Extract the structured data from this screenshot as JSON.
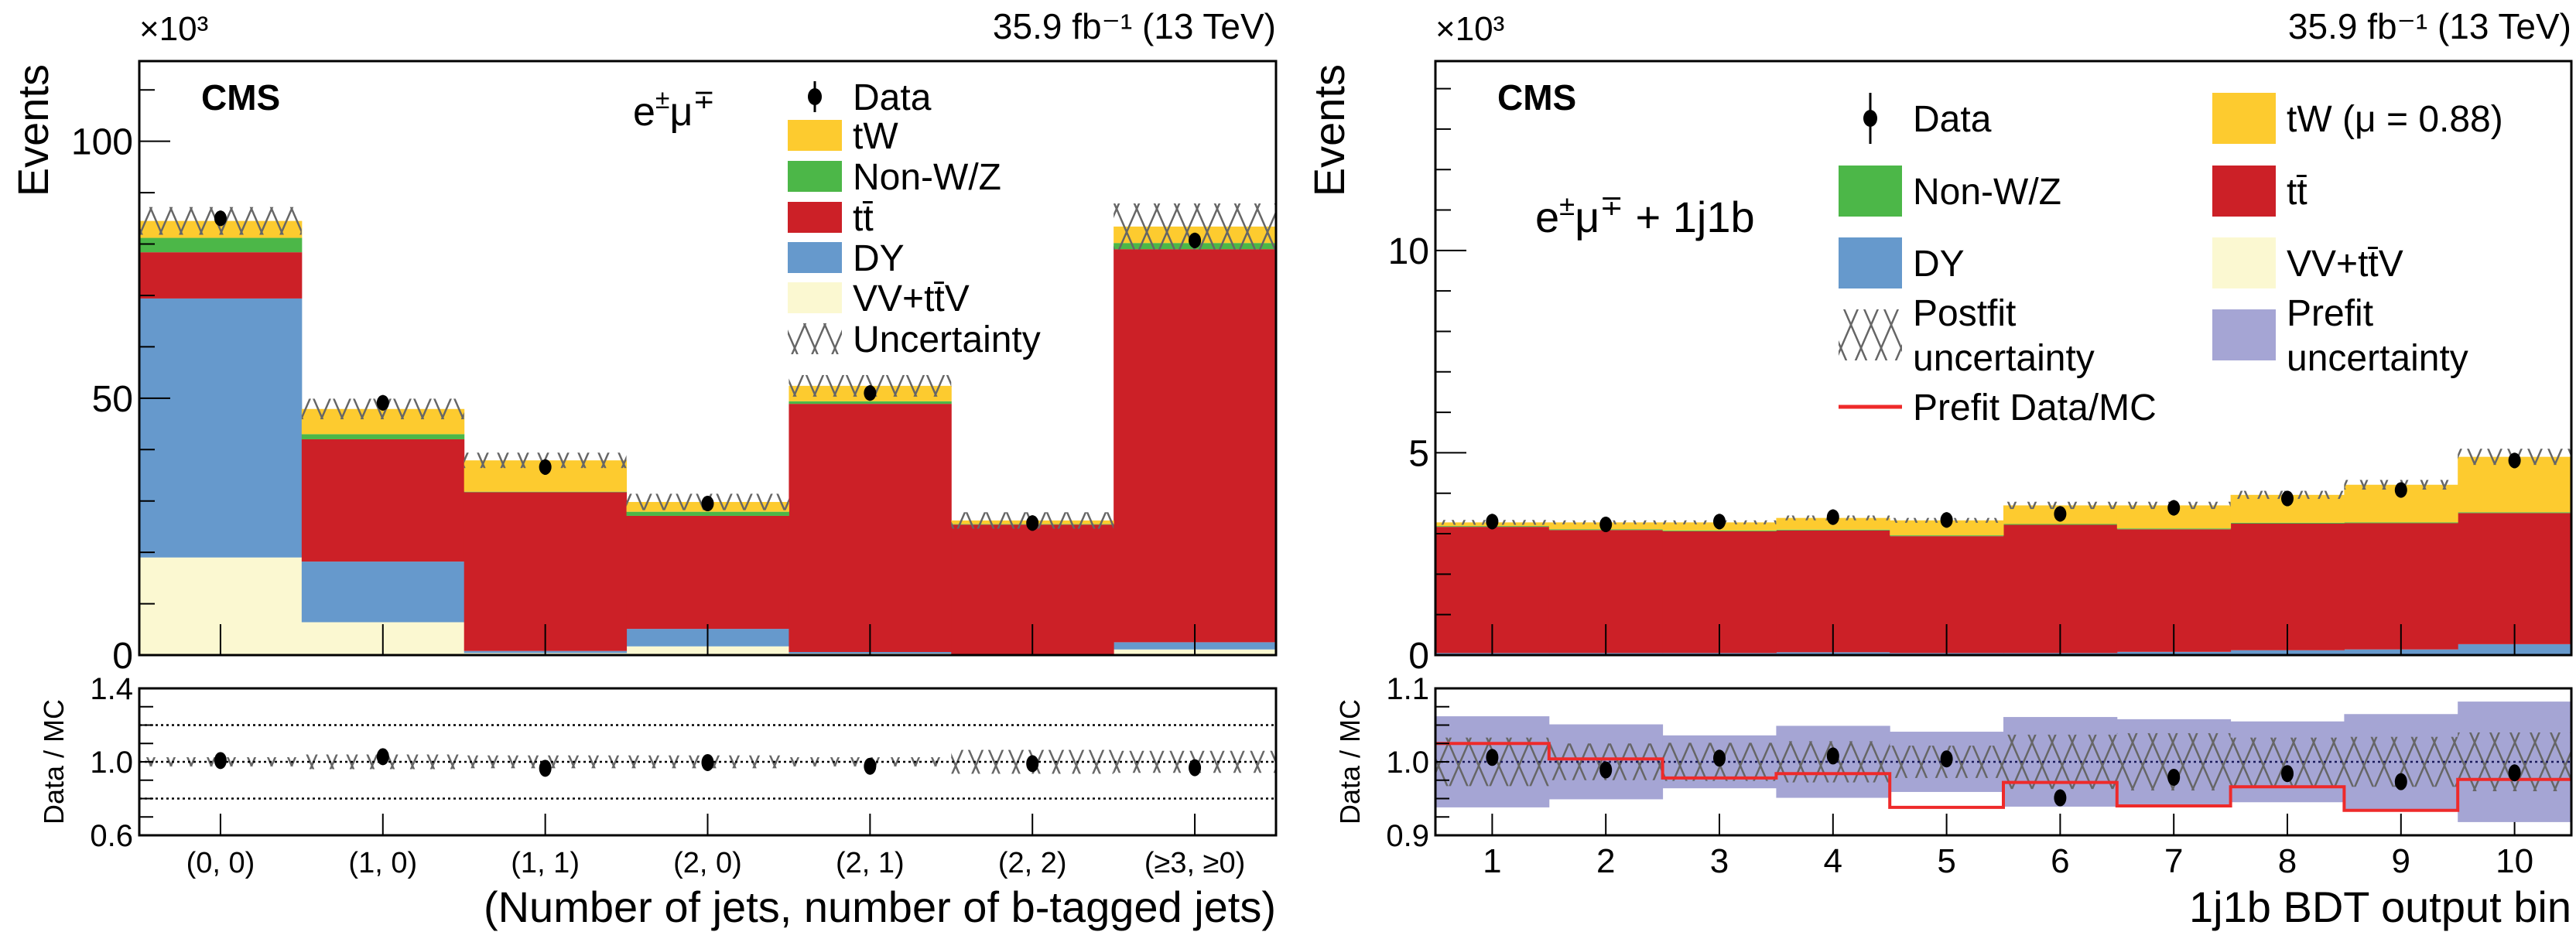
{
  "colors": {
    "tW": "#fdcb2f",
    "nonwz": "#4cb748",
    "ttbar": "#cc2027",
    "dy": "#6699cc",
    "vv": "#fbf8d1",
    "prefit_unc": "#a5a5d4",
    "prefit_line": "#ee2a2a",
    "hatch": "#666666"
  },
  "chart_data": [
    {
      "type": "bar",
      "stacked": true,
      "experiment": "CMS",
      "luminosity": "35.9 fb⁻¹ (13 TeV)",
      "multiplier": "×10³",
      "channel": {
        "l1": "e",
        "s1": "±",
        "l2": "μ",
        "s2": "∓",
        "suffix": ""
      },
      "ylabel": "Events",
      "xlabel": "(Number of jets, number of b-tagged jets)",
      "ylim": [
        0,
        115.6
      ],
      "yticks": [
        0,
        50,
        100
      ],
      "yticks_minor_step": 10,
      "categories": [
        "(0, 0)",
        "(1, 0)",
        "(1, 1)",
        "(2, 0)",
        "(2, 1)",
        "(2, 2)",
        "(≥3, ≥0)"
      ],
      "series": [
        {
          "name": "VV+tt̄V",
          "color": "#fbf8d1",
          "values": [
            19.0,
            6.4,
            0.4,
            1.7,
            0.3,
            0.1,
            1.1
          ]
        },
        {
          "name": "DY",
          "color": "#6699cc",
          "values": [
            50.4,
            11.8,
            0.4,
            3.4,
            0.3,
            0.1,
            1.4
          ]
        },
        {
          "name": "tt̄",
          "color": "#cc2027",
          "values": [
            9.0,
            23.8,
            30.9,
            22.0,
            48.3,
            25.2,
            76.5
          ]
        },
        {
          "name": "Non-W/Z",
          "color": "#4cb748",
          "values": [
            2.8,
            1.0,
            0.1,
            0.8,
            0.5,
            0.1,
            1.2
          ]
        },
        {
          "name": "tW",
          "color": "#fdcb2f",
          "values": [
            3.3,
            4.9,
            6.1,
            1.9,
            3.0,
            0.7,
            3.2
          ]
        }
      ],
      "data": {
        "name": "Data",
        "values": [
          85.0,
          49.1,
          36.6,
          29.5,
          51.0,
          25.7,
          80.7
        ]
      },
      "uncertainty": [
        2.7,
        2.0,
        1.5,
        1.6,
        2.1,
        1.6,
        4.5
      ],
      "legend": {
        "columns": 1,
        "entries": [
          {
            "kind": "marker",
            "label": [
              "Data"
            ]
          },
          {
            "kind": "fill",
            "color": "#fdcb2f",
            "label": [
              "tW"
            ]
          },
          {
            "kind": "fill",
            "color": "#4cb748",
            "label": [
              "Non-W/Z"
            ]
          },
          {
            "kind": "fill",
            "color": "#cc2027",
            "label": [
              "tt̄"
            ]
          },
          {
            "kind": "fill",
            "color": "#6699cc",
            "label": [
              "DY"
            ]
          },
          {
            "kind": "fill",
            "color": "#fbf8d1",
            "label": [
              "VV+tt̄V"
            ]
          },
          {
            "kind": "hatch",
            "label": [
              "Uncertainty"
            ]
          }
        ]
      },
      "ratio": {
        "ylabel": "Data / MC",
        "ylim": [
          0.6,
          1.4
        ],
        "yticks": [
          "0.6",
          "1.0",
          "1.4"
        ],
        "yticks_minor_step": 0.1,
        "gridlines": [
          0.8,
          1.0,
          1.2
        ],
        "values": [
          1.007,
          1.028,
          0.965,
          0.996,
          0.976,
          0.99,
          0.968
        ],
        "postfit_uncertainty": [
          0.025,
          0.04,
          0.035,
          0.035,
          0.025,
          0.065,
          0.06
        ]
      }
    },
    {
      "type": "bar",
      "stacked": true,
      "experiment": "CMS",
      "luminosity": "35.9 fb⁻¹ (13 TeV)",
      "multiplier": "×10³",
      "channel": {
        "l1": "e",
        "s1": "±",
        "l2": "μ",
        "s2": "∓",
        "suffix": " + 1j1b"
      },
      "ylabel": "Events",
      "xlabel": "1j1b BDT output bin",
      "ylim": [
        0,
        14.68
      ],
      "yticks": [
        0,
        5,
        10
      ],
      "yticks_minor_step": 1,
      "categories": [
        "1",
        "2",
        "3",
        "4",
        "5",
        "6",
        "7",
        "8",
        "9",
        "10"
      ],
      "series": [
        {
          "name": "VV+tt̄V",
          "color": "#fbf8d1",
          "values": [
            0.02,
            0.02,
            0.02,
            0.02,
            0.02,
            0.02,
            0.02,
            0.02,
            0.02,
            0.02
          ]
        },
        {
          "name": "DY",
          "color": "#6699cc",
          "values": [
            0.03,
            0.03,
            0.03,
            0.05,
            0.03,
            0.03,
            0.06,
            0.1,
            0.12,
            0.25
          ]
        },
        {
          "name": "tt̄",
          "color": "#cc2027",
          "values": [
            3.12,
            3.04,
            3.01,
            3.01,
            2.89,
            3.17,
            3.03,
            3.13,
            3.12,
            3.24
          ]
        },
        {
          "name": "Non-W/Z",
          "color": "#4cb748",
          "values": [
            0.02,
            0.02,
            0.02,
            0.02,
            0.02,
            0.02,
            0.02,
            0.02,
            0.02,
            0.02
          ]
        },
        {
          "name": "tW",
          "color": "#fdcb2f",
          "values": [
            0.09,
            0.17,
            0.2,
            0.29,
            0.37,
            0.46,
            0.57,
            0.69,
            0.93,
            1.37
          ]
        }
      ],
      "data": {
        "name": "Data",
        "values": [
          3.3,
          3.23,
          3.3,
          3.41,
          3.34,
          3.49,
          3.64,
          3.87,
          4.08,
          4.81
        ]
      },
      "uncertainty": [
        0.06,
        0.05,
        0.05,
        0.06,
        0.06,
        0.09,
        0.09,
        0.1,
        0.12,
        0.2
      ],
      "legend": {
        "columns": 2,
        "entries": [
          {
            "kind": "marker",
            "label": [
              "Data"
            ]
          },
          {
            "kind": "fill",
            "color": "#fdcb2f",
            "label": [
              "tW (μ = 0.88)"
            ]
          },
          {
            "kind": "fill",
            "color": "#4cb748",
            "label": [
              "Non-W/Z"
            ]
          },
          {
            "kind": "fill",
            "color": "#cc2027",
            "label": [
              "tt̄"
            ]
          },
          {
            "kind": "fill",
            "color": "#6699cc",
            "label": [
              "DY"
            ]
          },
          {
            "kind": "fill",
            "color": "#fbf8d1",
            "label": [
              "VV+tt̄V"
            ]
          },
          {
            "kind": "hatch",
            "label": [
              "Postfit",
              "uncertainty"
            ]
          },
          {
            "kind": "fill",
            "color": "#a5a5d4",
            "label": [
              "Prefit",
              "uncertainty"
            ]
          },
          {
            "kind": "line",
            "color": "#ee2a2a",
            "label": [
              "Prefit Data/MC"
            ]
          }
        ]
      },
      "ratio": {
        "ylabel": "Data / MC",
        "ylim": [
          0.9,
          1.1
        ],
        "yticks": [
          "0.9",
          "1.0",
          "1.1"
        ],
        "yticks_minor_step": 0.025,
        "gridlines": [
          1.0
        ],
        "values": [
          1.006,
          0.989,
          1.005,
          1.008,
          1.004,
          0.951,
          0.979,
          0.984,
          0.973,
          0.985
        ],
        "postfit_uncertainty": [
          0.033,
          0.025,
          0.026,
          0.028,
          0.022,
          0.037,
          0.039,
          0.033,
          0.034,
          0.04
        ],
        "prefit_uncertainty": [
          0.062,
          0.051,
          0.036,
          0.049,
          0.041,
          0.061,
          0.058,
          0.055,
          0.065,
          0.082
        ],
        "prefit_data_mc": [
          1.025,
          1.004,
          0.978,
          0.984,
          0.938,
          0.972,
          0.94,
          0.966,
          0.934,
          0.976
        ]
      }
    }
  ]
}
